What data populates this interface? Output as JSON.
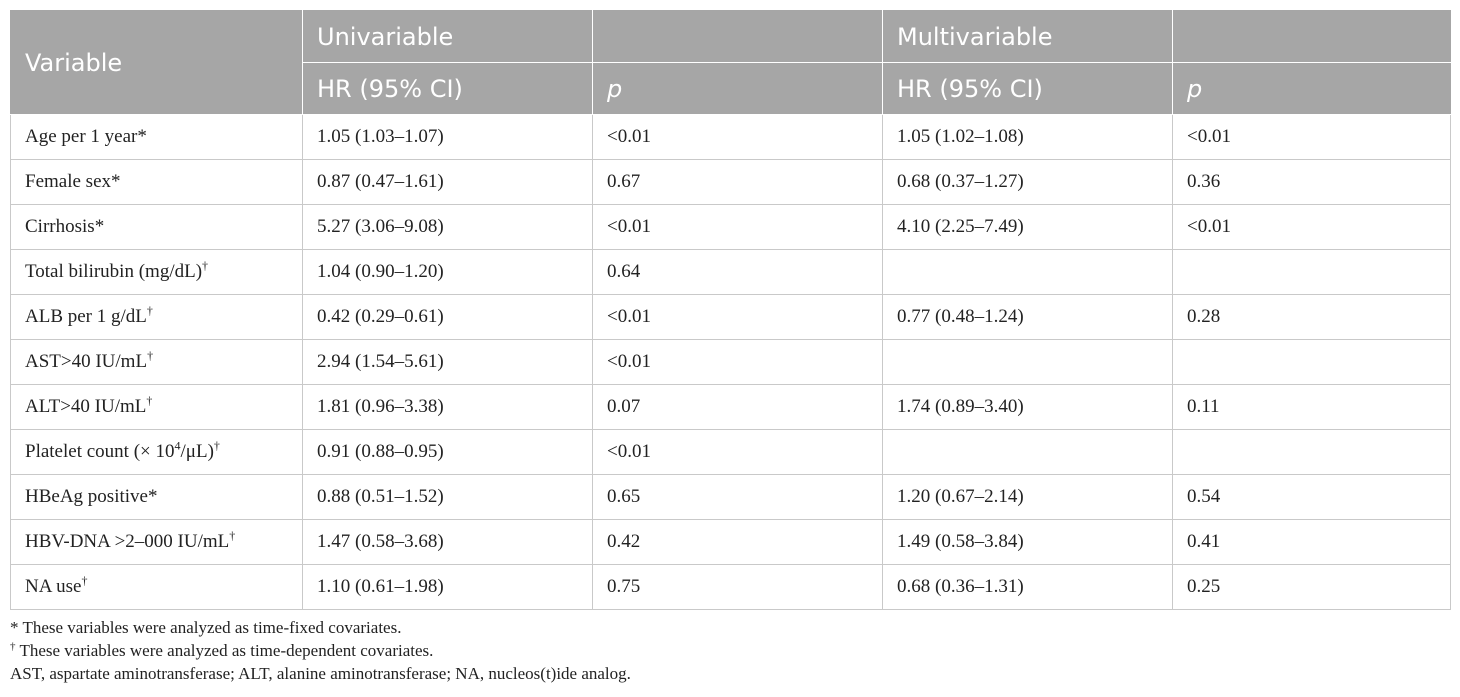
{
  "header": {
    "variable": "Variable",
    "univariable": "Univariable",
    "multivariable": "Multivariable",
    "hr_ci_1": "HR (95% CI)",
    "p_1": "p",
    "hr_ci_2": "HR (95% CI)",
    "p_2": "p"
  },
  "rows": [
    {
      "variable": "Age per 1 year",
      "mark": "*",
      "uni_hr": "1.05 (1.03–1.07)",
      "uni_p": "<0.01",
      "multi_hr": "1.05 (1.02–1.08)",
      "multi_p": "<0.01"
    },
    {
      "variable": "Female sex",
      "mark": "*",
      "uni_hr": "0.87 (0.47–1.61)",
      "uni_p": "0.67",
      "multi_hr": "0.68 (0.37–1.27)",
      "multi_p": "0.36"
    },
    {
      "variable": "Cirrhosis",
      "mark": "*",
      "uni_hr": "5.27 (3.06–9.08)",
      "uni_p": "<0.01",
      "multi_hr": "4.10 (2.25–7.49)",
      "multi_p": "<0.01"
    },
    {
      "variable": "Total bilirubin (mg/dL)",
      "mark": "†",
      "uni_hr": "1.04 (0.90–1.20)",
      "uni_p": "0.64",
      "multi_hr": "",
      "multi_p": ""
    },
    {
      "variable": "ALB per 1 g/dL",
      "mark": "†",
      "uni_hr": "0.42 (0.29–0.61)",
      "uni_p": "<0.01",
      "multi_hr": "0.77 (0.48–1.24)",
      "multi_p": "0.28"
    },
    {
      "variable": "AST>40 IU/mL",
      "mark": "†",
      "uni_hr": "2.94 (1.54–5.61)",
      "uni_p": "<0.01",
      "multi_hr": "",
      "multi_p": ""
    },
    {
      "variable": "ALT>40 IU/mL",
      "mark": "†",
      "uni_hr": "1.81 (0.96–3.38)",
      "uni_p": "0.07",
      "multi_hr": "1.74 (0.89–3.40)",
      "multi_p": "0.11"
    },
    {
      "variable_pre": "Platelet count (× 10",
      "variable_sup": "4",
      "variable_post": "/μL)",
      "mark": "†",
      "uni_hr": "0.91 (0.88–0.95)",
      "uni_p": "<0.01",
      "multi_hr": "",
      "multi_p": ""
    },
    {
      "variable": "HBeAg positive",
      "mark": "*",
      "uni_hr": "0.88 (0.51–1.52)",
      "uni_p": "0.65",
      "multi_hr": "1.20 (0.67–2.14)",
      "multi_p": "0.54"
    },
    {
      "variable": "HBV-DNA >2–000 IU/mL",
      "mark": "†",
      "uni_hr": "1.47 (0.58–3.68)",
      "uni_p": "0.42",
      "multi_hr": "1.49 (0.58–3.84)",
      "multi_p": "0.41"
    },
    {
      "variable": "NA use",
      "mark": "†",
      "uni_hr": "1.10 (0.61–1.98)",
      "uni_p": "0.75",
      "multi_hr": "0.68 (0.36–1.31)",
      "multi_p": "0.25"
    }
  ],
  "footnotes": {
    "note1_mark": "*",
    "note1_text": " These variables were analyzed as time-fixed covariates.",
    "note2_mark": "†",
    "note2_text": " These variables were analyzed as time-dependent covariates.",
    "note3_text": "AST, aspartate aminotransferase; ALT, alanine aminotransferase; NA, nucleos(t)ide analog."
  }
}
